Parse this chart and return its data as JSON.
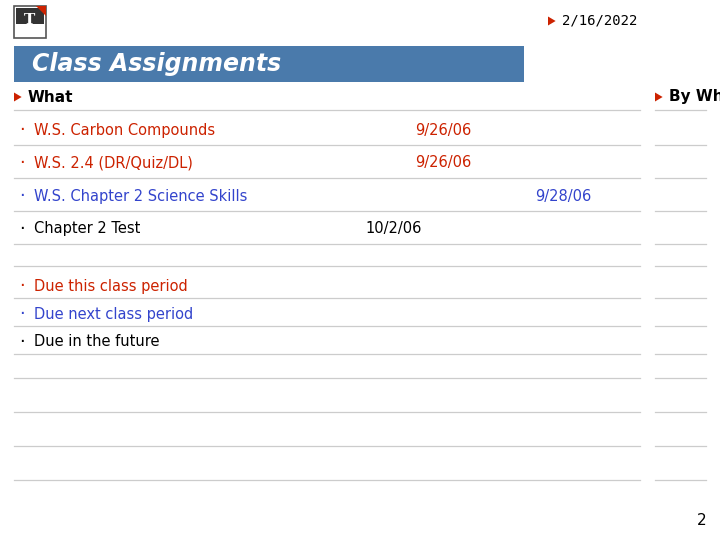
{
  "bg_color": "#ffffff",
  "date_text": "2/16/2022",
  "title_text": "Class Assignments",
  "title_bg": "#4a7aab",
  "title_text_color": "#ffffff",
  "header_what": "What",
  "header_bywhen": "By When",
  "header_color": "#000000",
  "arrow_color": "#cc2200",
  "rows": [
    {
      "text": "W.S. Carbon Compounds",
      "date": "9/26/06",
      "color": "#cc2200"
    },
    {
      "text": "W.S. 2.4 (DR/Quiz/DL)",
      "date": "9/26/06",
      "color": "#cc2200"
    },
    {
      "text": "W.S. Chapter 2 Science Skills",
      "date": "9/28/06",
      "color": "#3344cc"
    },
    {
      "text": "Chapter 2 Test",
      "date": "10/2/06",
      "color": "#000000"
    }
  ],
  "legend_rows": [
    {
      "text": "Due this class period",
      "color": "#cc2200"
    },
    {
      "text": "Due next class period",
      "color": "#3344cc"
    },
    {
      "text": "Due in the future",
      "color": "#000000"
    }
  ],
  "page_number": "2",
  "icon_color": "#cc2200",
  "line_color": "#cccccc",
  "bullet_char": "·"
}
